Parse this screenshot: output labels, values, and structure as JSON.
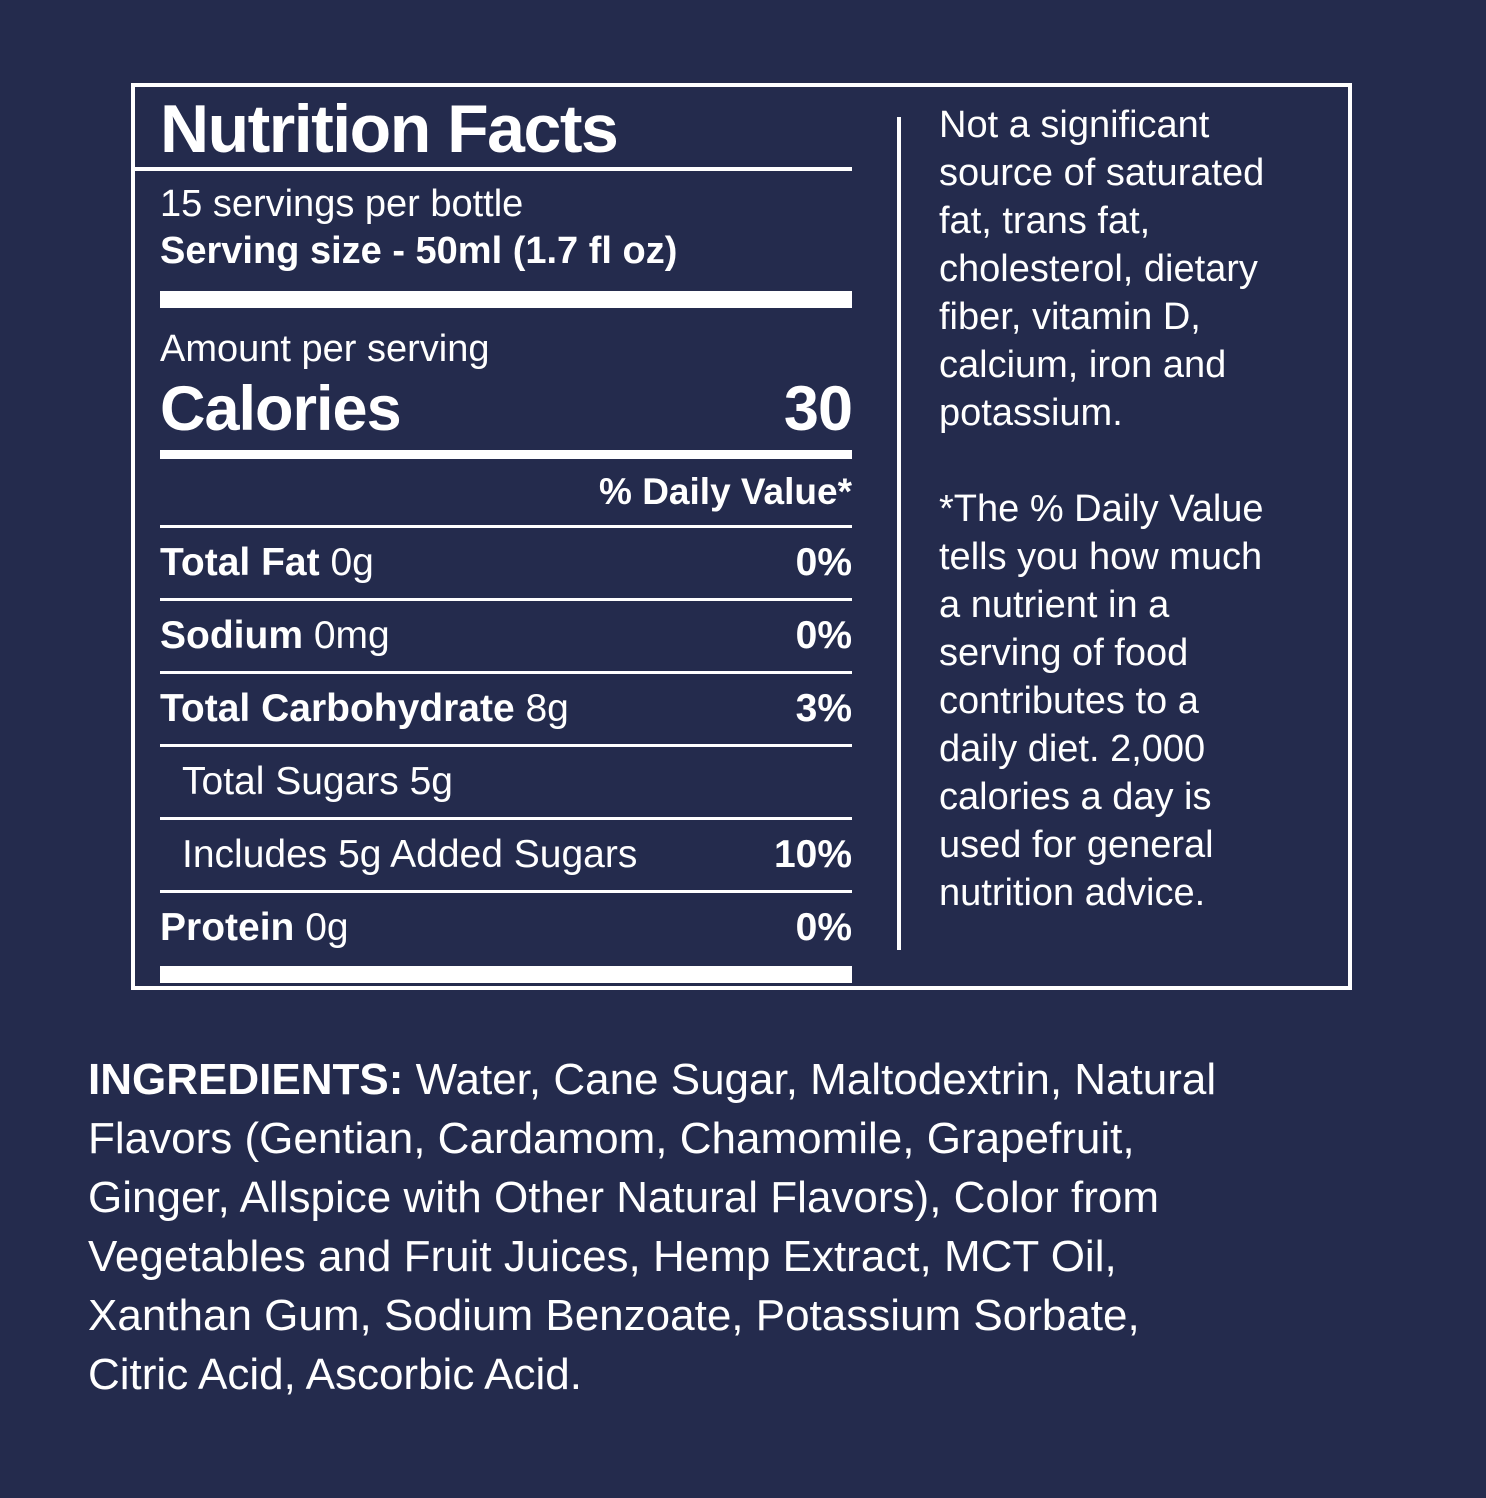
{
  "colors": {
    "background": "#242B4D",
    "foreground": "#FFFFFF"
  },
  "nutrition_panel": {
    "title": "Nutrition Facts",
    "servings_per_container": "15 servings per bottle",
    "serving_size": "Serving size - 50ml (1.7 fl oz)",
    "amount_per_serving": "Amount per serving",
    "calories_label": "Calories",
    "calories_value": "30",
    "daily_value_header": "% Daily Value*",
    "rows": [
      {
        "bold_part": "Total Fat",
        "regular_part": " 0g",
        "dv": "0%",
        "indent": false
      },
      {
        "bold_part": "Sodium",
        "regular_part": " 0mg",
        "dv": "0%",
        "indent": false
      },
      {
        "bold_part": "Total Carbohydrate",
        "regular_part": " 8g",
        "dv": "3%",
        "indent": false
      },
      {
        "bold_part": "",
        "regular_part": "Total Sugars 5g",
        "dv": "",
        "indent": true
      },
      {
        "bold_part": "",
        "regular_part": "Includes 5g Added Sugars",
        "dv": "10%",
        "indent": true
      },
      {
        "bold_part": "Protein",
        "regular_part": " 0g",
        "dv": "0%",
        "indent": false
      }
    ]
  },
  "side_notes": {
    "not_significant_lines": [
      "Not a significant",
      "source of saturated",
      "fat, trans fat,",
      "cholesterol, dietary",
      "fiber, vitamin D,",
      "calcium, iron and",
      "potassium."
    ],
    "daily_value_note_lines": [
      "*The % Daily Value",
      "tells you how much",
      "a nutrient in a",
      "serving of food",
      "contributes to a",
      "daily diet. 2,000",
      "calories a day is",
      "used for general",
      "nutrition advice."
    ]
  },
  "ingredients": {
    "label": "INGREDIENTS:",
    "lines": [
      " Water, Cane Sugar, Maltodextrin, Natural",
      "Flavors (Gentian, Cardamom, Chamomile, Grapefruit,",
      "Ginger, Allspice with Other Natural Flavors), Color from",
      "Vegetables and Fruit Juices, Hemp Extract, MCT Oil,",
      "Xanthan Gum, Sodium Benzoate, Potassium Sorbate,",
      "Citric Acid, Ascorbic Acid."
    ]
  }
}
